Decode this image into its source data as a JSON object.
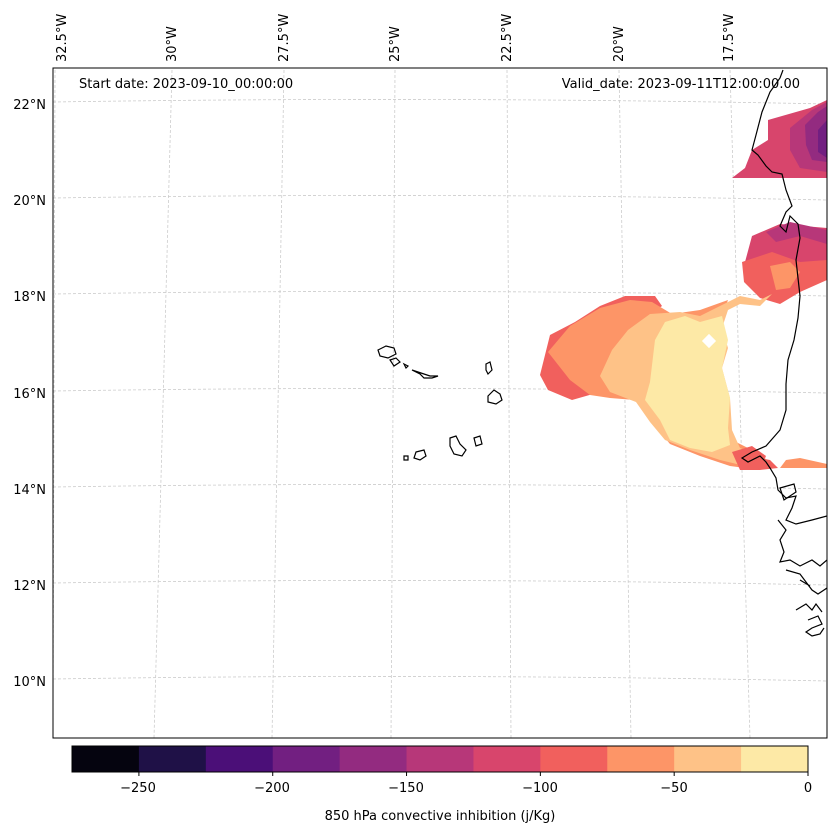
{
  "map": {
    "start_date_text": "Start date: 2023-09-10_00:00:00",
    "valid_date_text": "Valid_date: 2023-09-11T12:00:00.00",
    "lon_labels": [
      "32.5°W",
      "30°W",
      "27.5°W",
      "25°W",
      "22.5°W",
      "20°W",
      "17.5°W"
    ],
    "lat_labels": [
      "22°N",
      "20°N",
      "18°N",
      "16°N",
      "14°N",
      "12°N",
      "10°N"
    ],
    "extent": {
      "lon": [
        -33,
        -16.3
      ],
      "lat": [
        9,
        22.8
      ]
    },
    "region": "Cape Verde Islands and West African coast"
  },
  "colorbar": {
    "title": "850 hPa convective inhibition (j/Kg)",
    "tick_labels": [
      "−250",
      "−200",
      "−150",
      "−100",
      "−50",
      "0"
    ],
    "range": [
      -275,
      0
    ],
    "step": 25,
    "colors": [
      "#05040f",
      "#1f1147",
      "#4b0f78",
      "#721f81",
      "#932b80",
      "#b73779",
      "#d8456c",
      "#f1605d",
      "#fd9567",
      "#fec287",
      "#fde9a6"
    ]
  },
  "colors": {
    "grid": "#cccccc",
    "coast": "#000000"
  }
}
